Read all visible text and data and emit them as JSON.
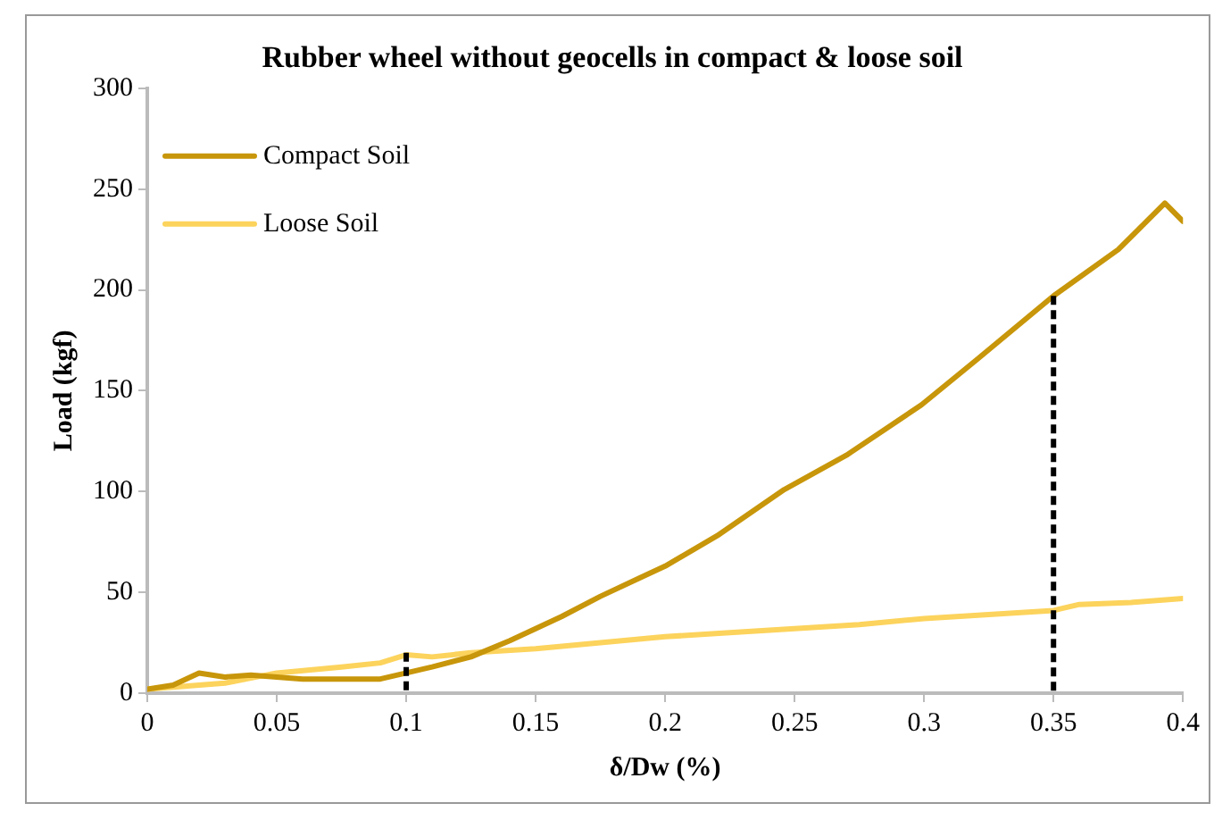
{
  "chart_data": {
    "type": "line",
    "title": "Rubber wheel without geocells in compact & loose soil",
    "xlabel": "δ/Dw (%)",
    "ylabel": "Load (kgf)",
    "series": [
      {
        "name": "Compact Soil",
        "color": "#c8960a",
        "x": [
          0,
          0.01,
          0.02,
          0.03,
          0.04,
          0.05,
          0.06,
          0.075,
          0.09,
          0.1,
          0.11,
          0.125,
          0.14,
          0.15,
          0.16,
          0.175,
          0.19,
          0.2,
          0.22,
          0.246,
          0.27,
          0.299,
          0.32,
          0.35,
          0.375,
          0.393,
          0.4
        ],
        "values": [
          2,
          4,
          10,
          8,
          9,
          8,
          7,
          7,
          7,
          10,
          13,
          18,
          26,
          32,
          38,
          48,
          57,
          63,
          78,
          101,
          118,
          143,
          165,
          197,
          220,
          243,
          234
        ]
      },
      {
        "name": "Loose Soil",
        "color": "#fcd35c",
        "x": [
          0,
          0.02,
          0.03,
          0.05,
          0.075,
          0.09,
          0.1,
          0.11,
          0.125,
          0.15,
          0.175,
          0.2,
          0.225,
          0.25,
          0.275,
          0.3,
          0.325,
          0.35,
          0.36,
          0.38,
          0.4
        ],
        "values": [
          2,
          4,
          5,
          10,
          13,
          15,
          19,
          18,
          20,
          22,
          25,
          28,
          30,
          32,
          34,
          37,
          39,
          41,
          44,
          45,
          47
        ]
      },
      {
        "type": "line",
        "line_style": "dashed",
        "color": "#000000",
        "x": [
          0.1,
          0.1
        ],
        "values": [
          20,
          0
        ]
      },
      {
        "type": "line",
        "line_style": "dashed",
        "color": "#000000",
        "x": [
          0.35,
          0.35
        ],
        "values": [
          197,
          0
        ]
      }
    ],
    "xlim": [
      0,
      0.4
    ],
    "xticks": [
      0,
      0.05,
      0.1,
      0.15,
      0.2,
      0.25,
      0.3,
      0.35,
      0.4
    ],
    "ylim": [
      0,
      300
    ],
    "yticks": [
      0,
      50,
      100,
      150,
      200,
      250,
      300
    ],
    "grid": false,
    "legend": "top left",
    "marker": "none",
    "line_style": "solid"
  }
}
